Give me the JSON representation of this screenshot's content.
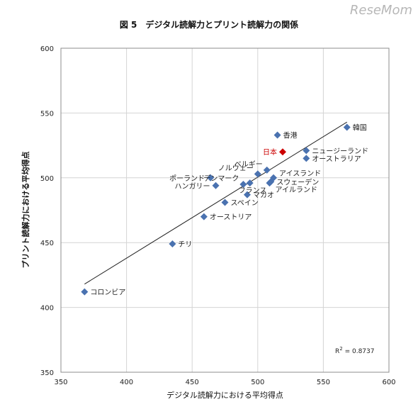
{
  "brand": {
    "watermark": "ReseMom"
  },
  "chart_data": {
    "type": "scatter",
    "title": "図 5　デジタル読解力とプリント読解力の関係",
    "xlabel": "デジタル読解力における平均得点",
    "ylabel": "プリント読解力における平均得点",
    "xlim": [
      350,
      600
    ],
    "ylim": [
      350,
      600
    ],
    "xticks": [
      350,
      400,
      450,
      500,
      550,
      600
    ],
    "yticks": [
      350,
      400,
      450,
      500,
      550,
      600
    ],
    "grid": true,
    "legend": "none",
    "point_color": "#4a72b0",
    "highlight_color": "#cc0000",
    "trendline": {
      "x": [
        368,
        568
      ],
      "y": [
        418,
        543
      ]
    },
    "r_squared": {
      "label": "R",
      "exp": "2",
      "value": " = 0.8737"
    },
    "points": [
      {
        "label": "韓国",
        "x": 568,
        "y": 539,
        "highlight": false,
        "label_side": "right"
      },
      {
        "label": "香港",
        "x": 515,
        "y": 533,
        "highlight": false,
        "label_side": "right"
      },
      {
        "label": "日本",
        "x": 519,
        "y": 520,
        "highlight": true,
        "label_side": "left"
      },
      {
        "label": "ニュージーランド",
        "x": 537,
        "y": 521,
        "highlight": false,
        "label_side": "right"
      },
      {
        "label": "オーストラリア",
        "x": 537,
        "y": 515,
        "highlight": false,
        "label_side": "right"
      },
      {
        "label": "ベルギー",
        "x": 507,
        "y": 506,
        "highlight": false,
        "label_side": "left-up"
      },
      {
        "label": "ノルウェー",
        "x": 500,
        "y": 503,
        "highlight": false,
        "label_side": "left-up"
      },
      {
        "label": "アイスランド",
        "x": 512,
        "y": 500,
        "highlight": false,
        "label_side": "right-up"
      },
      {
        "label": "ポーランド",
        "x": 464,
        "y": 500,
        "highlight": false,
        "label_side": "left"
      },
      {
        "label": "デンマーク",
        "x": 489,
        "y": 495,
        "highlight": false,
        "label_side": "left-up"
      },
      {
        "label": "スウェーデン",
        "x": 510,
        "y": 497,
        "highlight": false,
        "label_side": "right"
      },
      {
        "label": "フランス",
        "x": 494,
        "y": 496,
        "highlight": false,
        "label_side": "below"
      },
      {
        "label": "アイルランド",
        "x": 509,
        "y": 496,
        "highlight": false,
        "label_side": "right-down"
      },
      {
        "label": "ハンガリー",
        "x": 468,
        "y": 494,
        "highlight": false,
        "label_side": "left"
      },
      {
        "label": "マカオ",
        "x": 492,
        "y": 487,
        "highlight": false,
        "label_side": "right"
      },
      {
        "label": "スペイン",
        "x": 475,
        "y": 481,
        "highlight": false,
        "label_side": "right"
      },
      {
        "label": "オーストリア",
        "x": 459,
        "y": 470,
        "highlight": false,
        "label_side": "right"
      },
      {
        "label": "チリ",
        "x": 435,
        "y": 449,
        "highlight": false,
        "label_side": "right"
      },
      {
        "label": "コロンビア",
        "x": 368,
        "y": 412,
        "highlight": false,
        "label_side": "right"
      }
    ]
  }
}
